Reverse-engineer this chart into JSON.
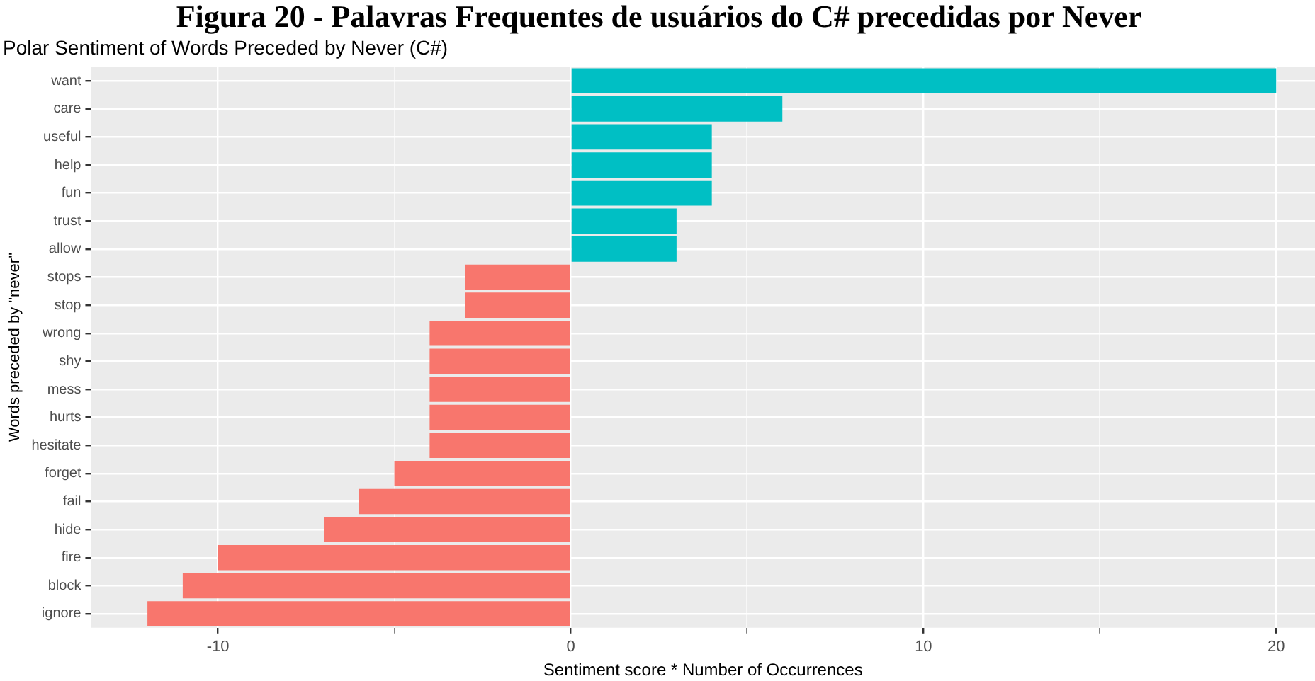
{
  "chart_data": {
    "type": "bar",
    "orientation": "horizontal",
    "title": "Figura 20 - Palavras Frequentes de usuários do C# precedidas por Never",
    "subtitle": "Polar Sentiment of Words Preceded by Never (C#)",
    "xlabel": "Sentiment score * Number of Occurrences",
    "ylabel": "Words preceded by \"never\"",
    "categories": [
      "want",
      "care",
      "useful",
      "help",
      "fun",
      "trust",
      "allow",
      "stops",
      "stop",
      "wrong",
      "shy",
      "mess",
      "hurts",
      "hesitate",
      "forget",
      "fail",
      "hide",
      "fire",
      "block",
      "ignore"
    ],
    "values": [
      20,
      6,
      4,
      4,
      4,
      3,
      3,
      -3,
      -3,
      -4,
      -4,
      -4,
      -4,
      -4,
      -5,
      -6,
      -7,
      -10,
      -11,
      -12
    ],
    "colors": [
      "#00bfc4",
      "#00bfc4",
      "#00bfc4",
      "#00bfc4",
      "#00bfc4",
      "#00bfc4",
      "#00bfc4",
      "#f8766d",
      "#f8766d",
      "#f8766d",
      "#f8766d",
      "#f8766d",
      "#f8766d",
      "#f8766d",
      "#f8766d",
      "#f8766d",
      "#f8766d",
      "#f8766d",
      "#f8766d",
      "#f8766d"
    ],
    "xlim": [
      -13.6,
      21.1
    ],
    "xticks": [
      {
        "value": -10,
        "label": "-10"
      },
      {
        "value": -5,
        "label": null
      },
      0,
      {
        "value": 5,
        "label": null
      },
      10,
      {
        "value": 15,
        "label": null
      },
      20
    ],
    "grid": true
  }
}
